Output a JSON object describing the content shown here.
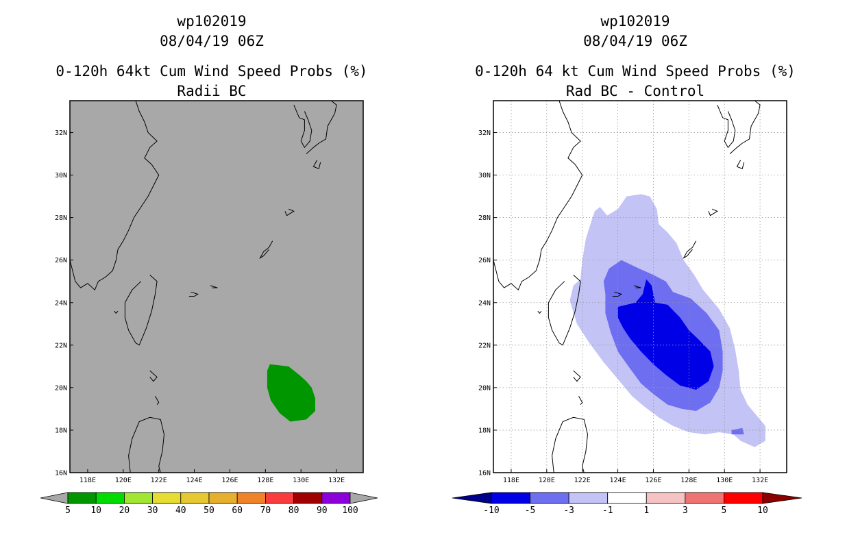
{
  "chart_data": [
    {
      "type": "contour_map",
      "title_lines": [
        "wp102019",
        "08/04/19 06Z",
        "0-120h 64kt Cum Wind Speed Probs (%)",
        "Radii BC"
      ],
      "x_ticks": [
        "118E",
        "120E",
        "122E",
        "124E",
        "126E",
        "128E",
        "130E",
        "132E"
      ],
      "y_ticks": [
        "16N",
        "18N",
        "20N",
        "22N",
        "24N",
        "26N",
        "28N",
        "30N",
        "32N"
      ],
      "xlim": [
        117,
        133.5
      ],
      "ylim": [
        16,
        33.5
      ],
      "grid": false,
      "background": "#a8a8a8",
      "colorbar": {
        "labels": [
          "5",
          "10",
          "20",
          "30",
          "40",
          "50",
          "60",
          "70",
          "80",
          "90",
          "100"
        ],
        "colors": [
          "#009600",
          "#00dc00",
          "#a0e632",
          "#e6dc32",
          "#e6c832",
          "#e6af2d",
          "#f08228",
          "#fa3c3c",
          "#a00000",
          "#8c00dc"
        ],
        "arrow_color": "#a8a8a8"
      },
      "contours": [
        {
          "level": "5-10",
          "color": "#009600",
          "points": [
            [
              128.25,
              21.1
            ],
            [
              129.3,
              21.0
            ],
            [
              129.9,
              20.6
            ],
            [
              130.3,
              20.3
            ],
            [
              130.6,
              20.0
            ],
            [
              130.8,
              19.5
            ],
            [
              130.8,
              18.9
            ],
            [
              130.3,
              18.5
            ],
            [
              129.4,
              18.4
            ],
            [
              128.8,
              18.8
            ],
            [
              128.3,
              19.4
            ],
            [
              128.1,
              20.0
            ],
            [
              128.1,
              20.8
            ]
          ]
        }
      ]
    },
    {
      "type": "contour_map",
      "title_lines": [
        "wp102019",
        "08/04/19 06Z",
        "0-120h 64 kt Cum Wind Speed Probs (%)",
        "Rad BC - Control"
      ],
      "x_ticks": [
        "118E",
        "120E",
        "122E",
        "124E",
        "126E",
        "128E",
        "130E",
        "132E"
      ],
      "y_ticks": [
        "16N",
        "18N",
        "20N",
        "22N",
        "24N",
        "26N",
        "28N",
        "30N",
        "32N"
      ],
      "xlim": [
        117,
        133.5
      ],
      "ylim": [
        16,
        33.5
      ],
      "grid": true,
      "background": "#ffffff",
      "colorbar": {
        "labels": [
          "-10",
          "-5",
          "-3",
          "-1",
          "1",
          "3",
          "5",
          "10"
        ],
        "colors": [
          "#0000e6",
          "#6e6ef0",
          "#c3c3f5",
          "#ffffff",
          "#f5c3c3",
          "#f07373",
          "#ff0000"
        ],
        "left_arrow_color": "#00008c",
        "right_arrow_color": "#8c0000"
      },
      "contours": [
        {
          "level": "-3 to -1",
          "color": "#c3c3f5",
          "points": [
            [
              122.7,
              28.3
            ],
            [
              123.0,
              28.5
            ],
            [
              123.4,
              28.1
            ],
            [
              124.0,
              28.4
            ],
            [
              124.5,
              29.0
            ],
            [
              125.3,
              29.1
            ],
            [
              125.8,
              29.0
            ],
            [
              126.2,
              28.4
            ],
            [
              126.3,
              27.7
            ],
            [
              126.8,
              27.3
            ],
            [
              127.3,
              26.8
            ],
            [
              127.7,
              26.0
            ],
            [
              128.3,
              25.3
            ],
            [
              128.8,
              24.6
            ],
            [
              129.7,
              23.7
            ],
            [
              130.3,
              22.8
            ],
            [
              130.6,
              21.8
            ],
            [
              130.8,
              20.8
            ],
            [
              130.9,
              19.9
            ],
            [
              131.3,
              19.2
            ],
            [
              131.8,
              18.7
            ],
            [
              132.3,
              18.2
            ],
            [
              132.3,
              17.5
            ],
            [
              131.7,
              17.2
            ],
            [
              130.9,
              17.5
            ],
            [
              130.5,
              17.8
            ],
            [
              129.7,
              17.9
            ],
            [
              128.9,
              17.8
            ],
            [
              128.0,
              17.9
            ],
            [
              127.1,
              18.2
            ],
            [
              126.3,
              18.6
            ],
            [
              125.5,
              19.1
            ],
            [
              124.8,
              19.6
            ],
            [
              124.0,
              20.4
            ],
            [
              123.2,
              21.2
            ],
            [
              122.4,
              22.1
            ],
            [
              121.7,
              23.0
            ],
            [
              121.3,
              24.1
            ],
            [
              121.5,
              24.8
            ],
            [
              121.9,
              25.1
            ],
            [
              122.0,
              26.0
            ],
            [
              122.2,
              27.0
            ],
            [
              122.5,
              27.8
            ]
          ]
        },
        {
          "level": "-5 to -3",
          "color": "#6e6ef0",
          "points": [
            [
              123.5,
              25.6
            ],
            [
              124.2,
              26.0
            ],
            [
              125.2,
              25.6
            ],
            [
              126.0,
              25.3
            ],
            [
              126.7,
              25.0
            ],
            [
              127.1,
              24.5
            ],
            [
              128.1,
              24.2
            ],
            [
              129.0,
              23.5
            ],
            [
              129.7,
              22.7
            ],
            [
              129.9,
              21.7
            ],
            [
              129.9,
              20.8
            ],
            [
              129.7,
              20.0
            ],
            [
              129.2,
              19.3
            ],
            [
              128.4,
              18.9
            ],
            [
              127.6,
              19.0
            ],
            [
              126.8,
              19.2
            ],
            [
              126.0,
              19.7
            ],
            [
              125.3,
              20.2
            ],
            [
              124.6,
              21.0
            ],
            [
              124.0,
              21.7
            ],
            [
              123.6,
              22.6
            ],
            [
              123.3,
              23.5
            ],
            [
              123.3,
              24.4
            ],
            [
              123.2,
              25.0
            ]
          ]
        },
        {
          "level": "-10 to -5",
          "color": "#0000e6",
          "points": [
            [
              124.0,
              23.8
            ],
            [
              125.0,
              24.0
            ],
            [
              125.4,
              24.4
            ],
            [
              125.6,
              25.1
            ],
            [
              125.9,
              24.8
            ],
            [
              126.1,
              24.0
            ],
            [
              126.8,
              23.9
            ],
            [
              127.5,
              23.3
            ],
            [
              128.0,
              22.7
            ],
            [
              128.5,
              22.3
            ],
            [
              129.2,
              21.7
            ],
            [
              129.4,
              21.0
            ],
            [
              129.1,
              20.3
            ],
            [
              128.4,
              19.9
            ],
            [
              127.5,
              20.1
            ],
            [
              126.7,
              20.6
            ],
            [
              126.0,
              21.1
            ],
            [
              125.3,
              21.7
            ],
            [
              124.7,
              22.3
            ],
            [
              124.3,
              22.8
            ],
            [
              124.0,
              23.3
            ]
          ]
        },
        {
          "level": "-5 to -3",
          "color": "#6e6ef0",
          "points": [
            [
              130.4,
              18.0
            ],
            [
              131.0,
              18.1
            ],
            [
              131.1,
              17.8
            ],
            [
              130.4,
              17.8
            ]
          ]
        }
      ]
    }
  ]
}
